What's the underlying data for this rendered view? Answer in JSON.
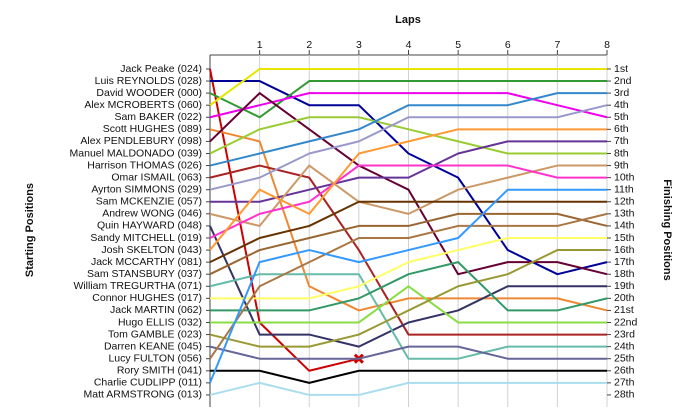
{
  "chart_data": {
    "type": "line",
    "title": "Laps",
    "y_label": "Starting Positions",
    "y2_label": "Finishing Positions",
    "x": [
      0,
      1,
      2,
      3,
      4,
      5,
      6,
      7,
      8
    ],
    "xlim": [
      0,
      8
    ],
    "xticks": [
      1,
      2,
      3,
      4,
      5,
      6,
      7,
      8
    ],
    "ylim": [
      0,
      29
    ],
    "yticks": [
      {
        "value": 1,
        "label": "1st"
      },
      {
        "value": 2,
        "label": "2nd"
      },
      {
        "value": 3,
        "label": "3rd"
      },
      {
        "value": 4,
        "label": "4th"
      },
      {
        "value": 5,
        "label": "5th"
      },
      {
        "value": 6,
        "label": "6th"
      },
      {
        "value": 7,
        "label": "7th"
      },
      {
        "value": 8,
        "label": "8th"
      },
      {
        "value": 9,
        "label": "9th"
      },
      {
        "value": 10,
        "label": "10th"
      },
      {
        "value": 11,
        "label": "11th"
      },
      {
        "value": 12,
        "label": "12th"
      },
      {
        "value": 13,
        "label": "13th"
      },
      {
        "value": 14,
        "label": "14th"
      },
      {
        "value": 15,
        "label": "15th"
      },
      {
        "value": 16,
        "label": "16th"
      },
      {
        "value": 17,
        "label": "17th"
      },
      {
        "value": 18,
        "label": "18th"
      },
      {
        "value": 19,
        "label": "19th"
      },
      {
        "value": 20,
        "label": "20th"
      },
      {
        "value": 21,
        "label": "21st"
      },
      {
        "value": 22,
        "label": "22nd"
      },
      {
        "value": 23,
        "label": "23rd"
      },
      {
        "value": 24,
        "label": "24th"
      },
      {
        "value": 25,
        "label": "25th"
      },
      {
        "value": 26,
        "label": "26th"
      },
      {
        "value": 27,
        "label": "27th"
      },
      {
        "value": 28,
        "label": "28th"
      }
    ],
    "grid": true,
    "series": [
      {
        "name": "Jack Peake (024)",
        "color": "#cc0000",
        "values": [
          1,
          22,
          26,
          25,
          null,
          null,
          null,
          null,
          null
        ]
      },
      {
        "name": "Luis REYNOLDS (028)",
        "color": "#000099",
        "values": [
          2,
          2,
          4,
          4,
          8,
          10,
          16,
          18,
          17
        ]
      },
      {
        "name": "David WOODER (000)",
        "color": "#339933",
        "values": [
          3,
          5,
          2,
          2,
          2,
          2,
          2,
          2,
          2
        ]
      },
      {
        "name": "Alex MCROBERTS (060)",
        "color": "#e6e600",
        "values": [
          4,
          1,
          1,
          1,
          1,
          1,
          1,
          1,
          1
        ]
      },
      {
        "name": "Sam BAKER (022)",
        "color": "#ee00ee",
        "values": [
          5,
          4,
          3,
          3,
          3,
          3,
          3,
          4,
          5
        ]
      },
      {
        "name": "Scott HUGHES (089)",
        "color": "#ee8833",
        "values": [
          6,
          7,
          19,
          21,
          20,
          20,
          20,
          20,
          21
        ]
      },
      {
        "name": "Alex PENDLEBURY (098)",
        "color": "#660033",
        "values": [
          7,
          3,
          6,
          9,
          11,
          18,
          17,
          17,
          18
        ]
      },
      {
        "name": "Manuel MALDONADO (039)",
        "color": "#99cc33",
        "values": [
          8,
          6,
          5,
          5,
          6,
          7,
          8,
          8,
          8
        ]
      },
      {
        "name": "Harrison THOMAS (026)",
        "color": "#3388cc",
        "values": [
          9,
          8,
          7,
          6,
          4,
          4,
          4,
          3,
          3
        ]
      },
      {
        "name": "Omar ISMAIL (063)",
        "color": "#aa2222",
        "values": [
          10,
          9,
          10,
          16,
          23,
          23,
          23,
          23,
          23
        ]
      },
      {
        "name": "Ayrton SIMMONS (029)",
        "color": "#9999cc",
        "values": [
          11,
          10,
          8,
          7,
          5,
          5,
          5,
          5,
          4
        ]
      },
      {
        "name": "Sam MCKENZIE (057)",
        "color": "#663399",
        "values": [
          12,
          12,
          11,
          10,
          10,
          8,
          7,
          7,
          7
        ]
      },
      {
        "name": "Andrew WONG (046)",
        "color": "#cc9966",
        "values": [
          13,
          14,
          9,
          12,
          13,
          11,
          10,
          9,
          9
        ]
      },
      {
        "name": "Quin HAYWARD (048)",
        "color": "#333366",
        "values": [
          14,
          23,
          23,
          24,
          22,
          21,
          19,
          19,
          19
        ]
      },
      {
        "name": "Sandy MITCHELL (019)",
        "color": "#ff33cc",
        "values": [
          15,
          13,
          12,
          9,
          9,
          9,
          9,
          10,
          10
        ]
      },
      {
        "name": "Josh SKELTON (043)",
        "color": "#ff9933",
        "values": [
          16,
          11,
          13,
          8,
          7,
          6,
          6,
          6,
          6
        ]
      },
      {
        "name": "Jack MCCARTHY (081)",
        "color": "#663300",
        "values": [
          17,
          15,
          14,
          12,
          12,
          12,
          12,
          12,
          12
        ]
      },
      {
        "name": "Sam STANSBURY (037)",
        "color": "#996633",
        "values": [
          18,
          16,
          15,
          14,
          14,
          13,
          13,
          13,
          14
        ]
      },
      {
        "name": "William TREGURTHA (071)",
        "color": "#66bbaa",
        "values": [
          19,
          18,
          18,
          18,
          25,
          25,
          24,
          24,
          24
        ]
      },
      {
        "name": "Connor HUGHES (017)",
        "color": "#ffff66",
        "values": [
          20,
          20,
          20,
          19,
          17,
          16,
          15,
          15,
          15
        ]
      },
      {
        "name": "Jack MARTIN (062)",
        "color": "#339966",
        "values": [
          21,
          21,
          21,
          20,
          18,
          17,
          21,
          21,
          20
        ]
      },
      {
        "name": "Hugo ELLIS (032)",
        "color": "#88dd44",
        "values": [
          22,
          22,
          22,
          22,
          19,
          22,
          22,
          22,
          22
        ]
      },
      {
        "name": "Tom GAMBLE (023)",
        "color": "#999933",
        "values": [
          23,
          24,
          24,
          23,
          21,
          19,
          18,
          16,
          16
        ]
      },
      {
        "name": "Darren KEANE (045)",
        "color": "#666699",
        "values": [
          24,
          25,
          25,
          25,
          24,
          24,
          25,
          25,
          25
        ]
      },
      {
        "name": "Lucy FULTON (056)",
        "color": "#aa7744",
        "values": [
          25,
          19,
          17,
          15,
          15,
          14,
          14,
          14,
          13
        ]
      },
      {
        "name": "Rory SMITH (041)",
        "color": "#000000",
        "values": [
          26,
          26,
          27,
          26,
          26,
          26,
          26,
          26,
          26
        ]
      },
      {
        "name": "Charlie CUDLIPP (011)",
        "color": "#3399ff",
        "values": [
          27,
          17,
          16,
          17,
          16,
          15,
          11,
          11,
          11
        ]
      },
      {
        "name": "Matt ARMSTRONG (013)",
        "color": "#aaddee",
        "values": [
          28,
          27,
          28,
          28,
          27,
          27,
          27,
          27,
          27
        ]
      }
    ]
  }
}
